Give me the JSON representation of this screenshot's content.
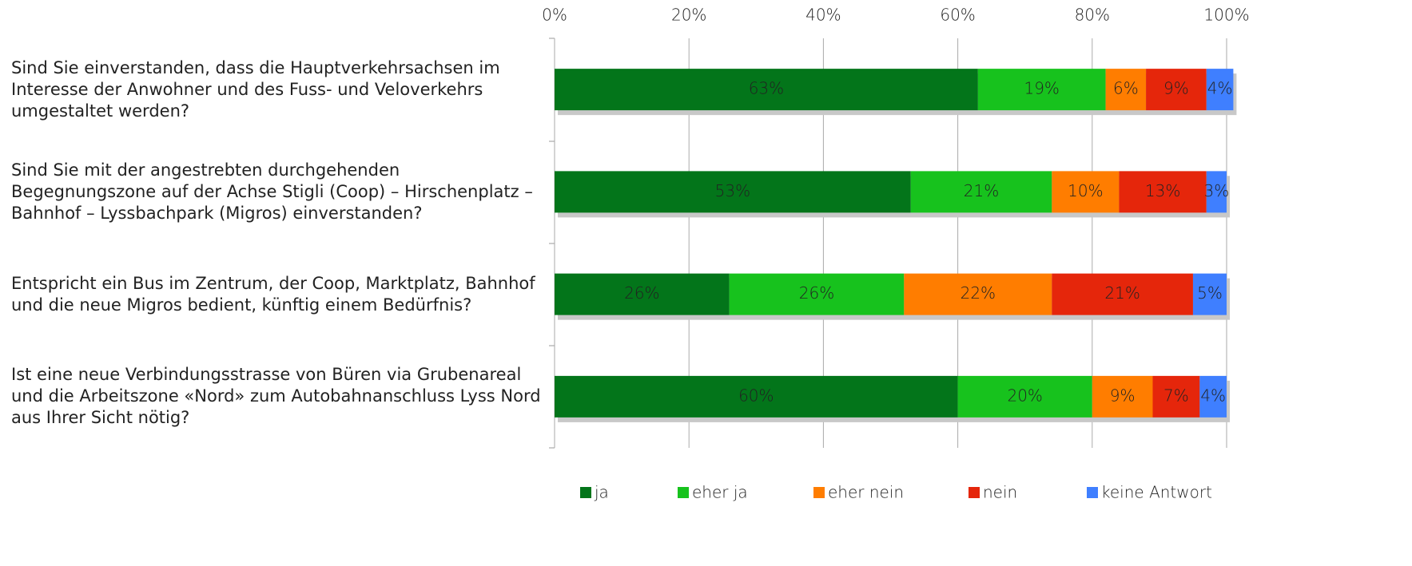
{
  "chart_data": {
    "type": "stacked_barh",
    "categories": [
      "Sind Sie einverstanden, dass die Hauptverkehrsachsen  im Interesse der Anwohner und des Fuss- und Veloverkehrs umgestaltet werden?",
      "Sind Sie mit der angestrebten durchgehenden Begegnungszone auf der Achse Stigli (Coop) – Hirschenplatz – Bahnhof – Lyssbachpark (Migros) einverstanden?",
      "Entspricht ein Bus im Zentrum, der Coop, Marktplatz, Bahnhof und die neue Migros bedient, künftig einem Bedürfnis?",
      "Ist eine neue Verbindungsstrasse von Büren via Grubenareal und die Arbeitszone «Nord» zum Autobahnanschluss Lyss Nord aus Ihrer Sicht nötig?"
    ],
    "series": [
      {
        "name": "ja",
        "color": "#03751a",
        "values": [
          63,
          53,
          26,
          60
        ],
        "value_labels": [
          "63%",
          "53%",
          "26%",
          "60%"
        ]
      },
      {
        "name": "eher ja",
        "color": "#17c21d",
        "values": [
          19,
          21,
          26,
          20
        ],
        "value_labels": [
          "19%",
          "21%",
          "26%",
          "20%"
        ]
      },
      {
        "name": "eher nein",
        "color": "#ff7d00",
        "values": [
          6,
          10,
          22,
          9
        ],
        "value_labels": [
          "6%",
          "10%",
          "22%",
          "9%"
        ]
      },
      {
        "name": "nein",
        "color": "#e5260b",
        "values": [
          9,
          13,
          21,
          7
        ],
        "value_labels": [
          "9%",
          "13%",
          "21%",
          "7%"
        ]
      },
      {
        "name": "keine Antwort",
        "color": "#3f7fff",
        "values": [
          4,
          3,
          5,
          4
        ],
        "value_labels": [
          "4%",
          "3%",
          "5%",
          "4%"
        ]
      }
    ],
    "xlim": [
      0,
      100
    ],
    "xticks": [
      {
        "value": 0,
        "label": "0%"
      },
      {
        "value": 20,
        "label": "20%"
      },
      {
        "value": 40,
        "label": "40%"
      },
      {
        "value": 60,
        "label": "60%"
      },
      {
        "value": 80,
        "label": "80%"
      },
      {
        "value": 100,
        "label": "100%"
      }
    ],
    "grid": true,
    "legend": "bottom"
  }
}
